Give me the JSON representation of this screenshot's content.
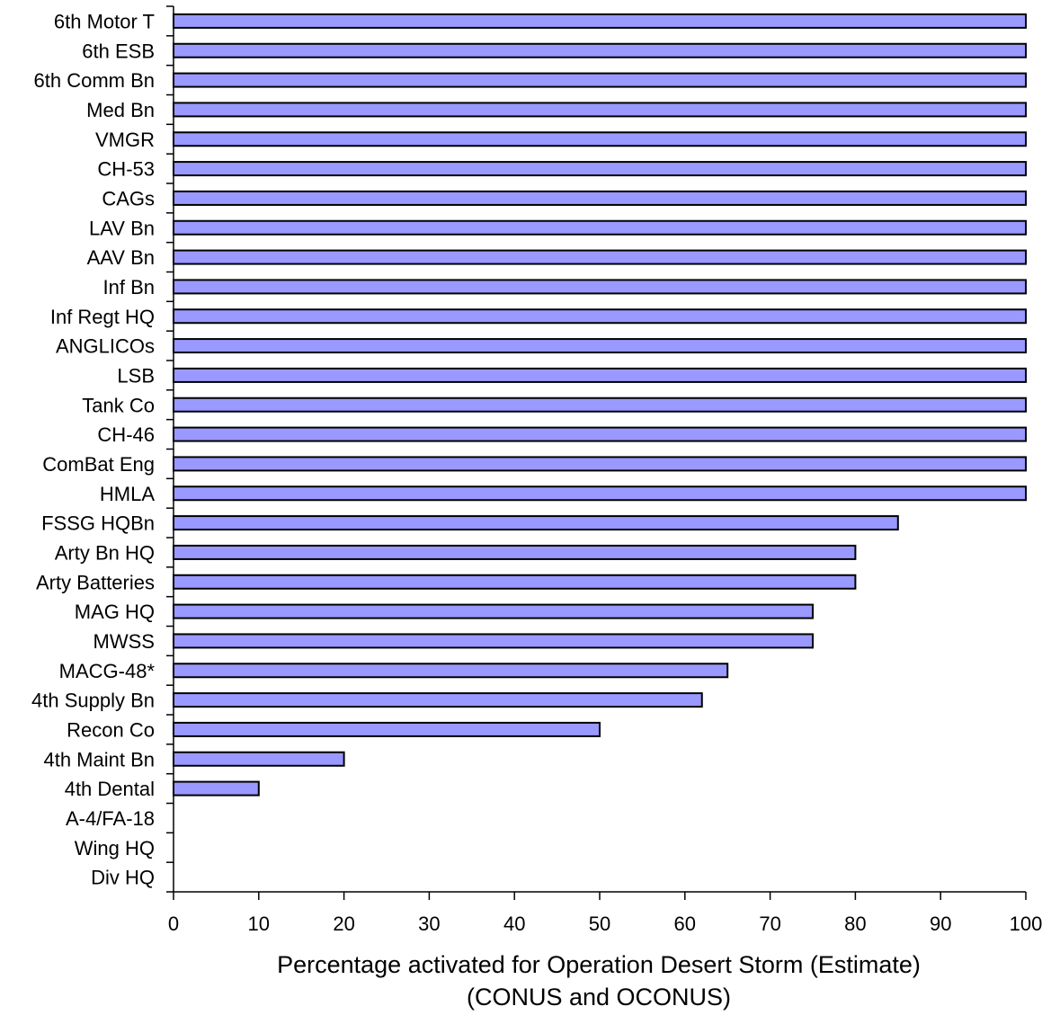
{
  "chart_data": {
    "type": "bar",
    "orientation": "horizontal",
    "categories": [
      "6th Motor T",
      "6th ESB",
      "6th Comm Bn",
      "Med Bn",
      "VMGR",
      "CH-53",
      "CAGs",
      "LAV Bn",
      "AAV Bn",
      "Inf Bn",
      "Inf Regt HQ",
      "ANGLICOs",
      "LSB",
      "Tank Co",
      "CH-46",
      "ComBat Eng",
      "HMLA",
      "FSSG HQBn",
      "Arty Bn HQ",
      "Arty Batteries",
      "MAG HQ",
      "MWSS",
      "MACG-48*",
      "4th Supply Bn",
      "Recon Co",
      "4th Maint Bn",
      "4th Dental",
      "A-4/FA-18",
      "Wing HQ",
      "Div HQ"
    ],
    "values": [
      100,
      100,
      100,
      100,
      100,
      100,
      100,
      100,
      100,
      100,
      100,
      100,
      100,
      100,
      100,
      100,
      100,
      85,
      80,
      80,
      75,
      75,
      65,
      62,
      50,
      20,
      10,
      0,
      0,
      0
    ],
    "xlim": [
      0,
      100
    ],
    "xticks": [
      "0",
      "10",
      "20",
      "30",
      "40",
      "50",
      "60",
      "70",
      "80",
      "90",
      "100"
    ],
    "xlabel": "Percentage activated for Operation Desert Storm (Estimate)",
    "xlabel_line2": "(CONUS and OCONUS)",
    "ylabel": "",
    "grid": false,
    "legend": "none",
    "bar_color": "#9999ff",
    "bar_edge_color": "#000000"
  }
}
